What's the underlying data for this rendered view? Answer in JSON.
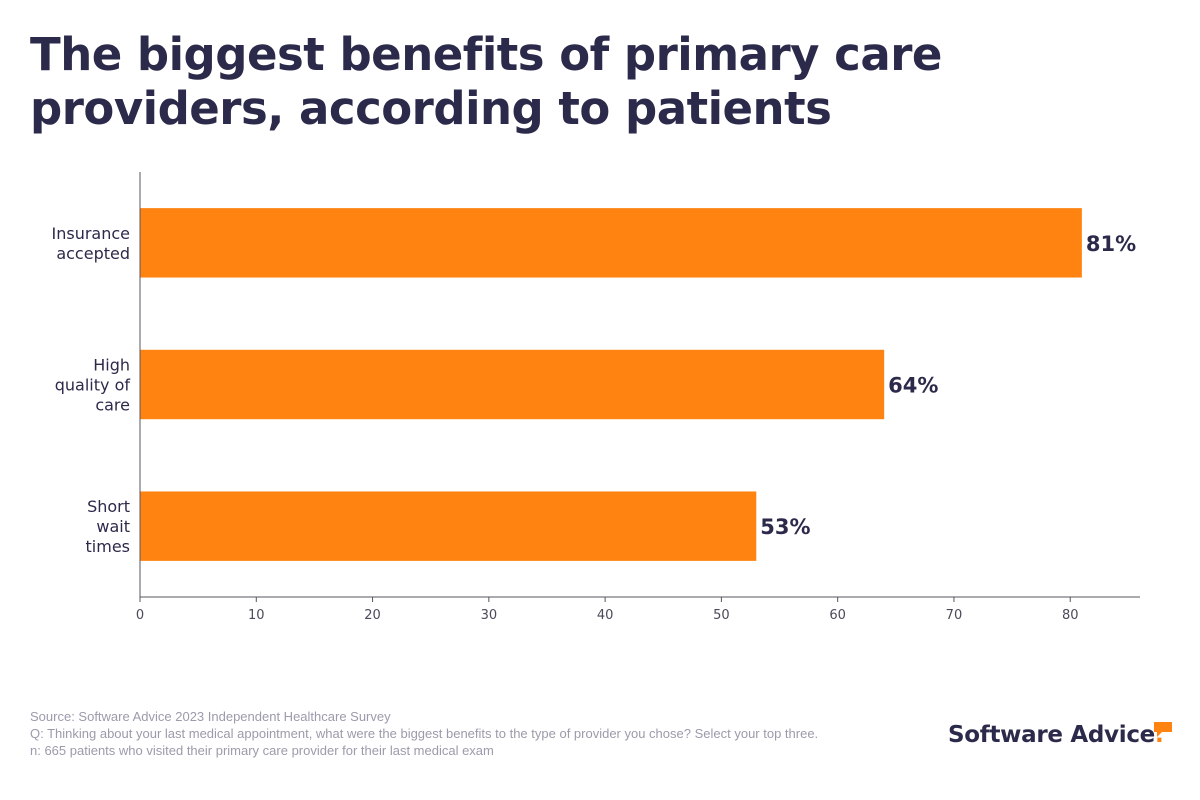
{
  "title": "The biggest benefits of primary care providers, according to patients",
  "footnotes": {
    "source": "Source: Software Advice 2023 Independent Healthcare Survey",
    "question": "Q: Thinking about your last medical appointment, what were the biggest benefits to the type of provider you chose? Select your top three.",
    "sample": "n: 665 patients who visited their primary care provider for their last medical exam"
  },
  "brand": {
    "name": "Software Advice",
    "trademark": ".",
    "icon": "speech-bubble-icon",
    "accent": "#ff8310"
  },
  "colors": {
    "bar": "#ff8310",
    "text": "#2c2a4a",
    "axis": "#55555f",
    "muted": "#9b9bab"
  },
  "chart_data": {
    "type": "bar",
    "orientation": "horizontal",
    "title": "The biggest benefits of primary care providers, according to patients",
    "categories": [
      [
        "Insurance",
        "accepted"
      ],
      [
        "High",
        "quality of",
        "care"
      ],
      [
        "Short",
        "wait",
        "times"
      ]
    ],
    "values": [
      81,
      64,
      53
    ],
    "data_labels": [
      "81%",
      "64%",
      "53%"
    ],
    "xlim": [
      0,
      86
    ],
    "xticks": [
      0,
      10,
      20,
      30,
      40,
      50,
      60,
      70,
      80
    ],
    "xlabel": "",
    "ylabel": "",
    "grid": false,
    "legend": "none"
  }
}
